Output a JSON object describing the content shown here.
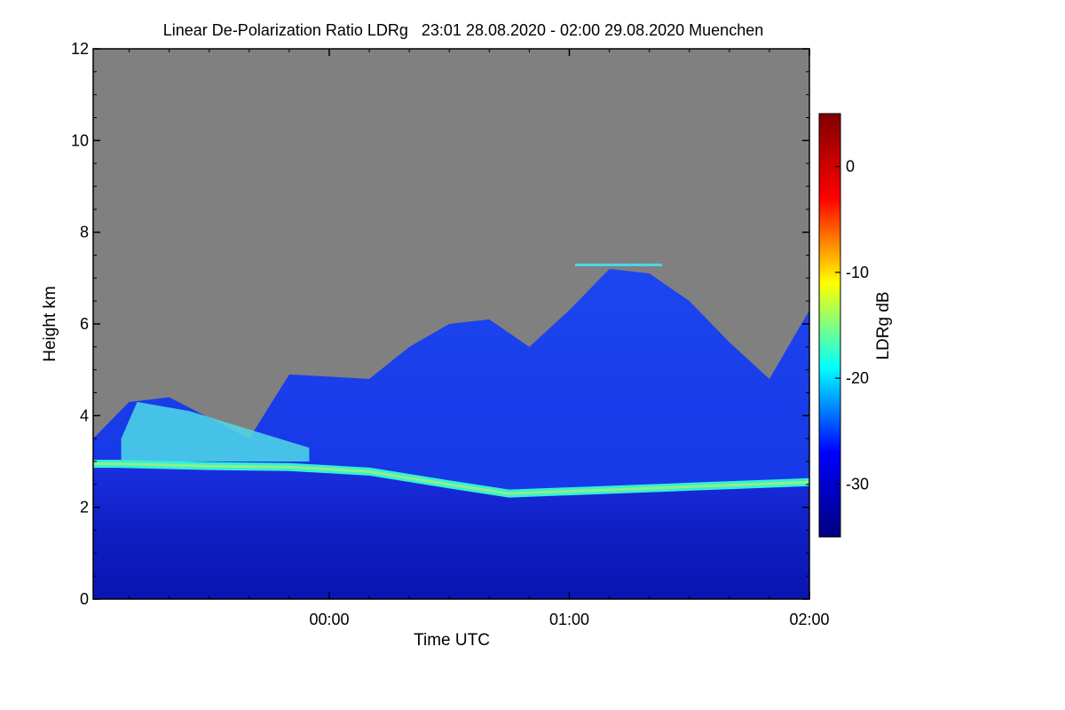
{
  "chart_data": {
    "type": "heatmap",
    "title": "Linear De-Polarization Ratio LDRg   23:01 28.08.2020 - 02:00 29.08.2020 Muenchen",
    "xlabel": "Time UTC",
    "ylabel": "Height km",
    "x_range": [
      "23:01",
      "02:00"
    ],
    "xticks": [
      "00:00",
      "01:00",
      "02:00"
    ],
    "y_range": [
      0,
      12
    ],
    "yticks": [
      "0",
      "2",
      "4",
      "6",
      "8",
      "10",
      "12"
    ],
    "colorbar": {
      "label": "LDRg dB",
      "range": [
        -35,
        5
      ],
      "ticks": [
        "-30",
        "-20",
        "-10",
        "0"
      ],
      "colormap": [
        "#00007f",
        "#0000ff",
        "#00ffff",
        "#ffff00",
        "#ff0000",
        "#7f0000"
      ]
    },
    "background_color": "#808080",
    "bright_band": {
      "description_points_time": [
        "23:07",
        "23:30",
        "23:50",
        "00:10",
        "00:30",
        "00:45",
        "01:00",
        "01:30",
        "02:00"
      ],
      "height_km": [
        2.95,
        2.9,
        2.88,
        2.78,
        2.5,
        2.3,
        2.35,
        2.45,
        2.55
      ]
    },
    "cloud_top": {
      "time": [
        "23:01",
        "23:10",
        "23:20",
        "23:40",
        "23:50",
        "00:10",
        "00:20",
        "00:30",
        "00:40",
        "00:50",
        "01:00",
        "01:10",
        "01:20",
        "01:30",
        "01:40",
        "01:50",
        "02:00"
      ],
      "height_km": [
        3.5,
        4.3,
        4.4,
        3.5,
        4.9,
        4.8,
        5.5,
        6.0,
        6.1,
        5.5,
        6.3,
        7.2,
        7.1,
        6.5,
        5.6,
        4.8,
        6.3
      ]
    }
  }
}
